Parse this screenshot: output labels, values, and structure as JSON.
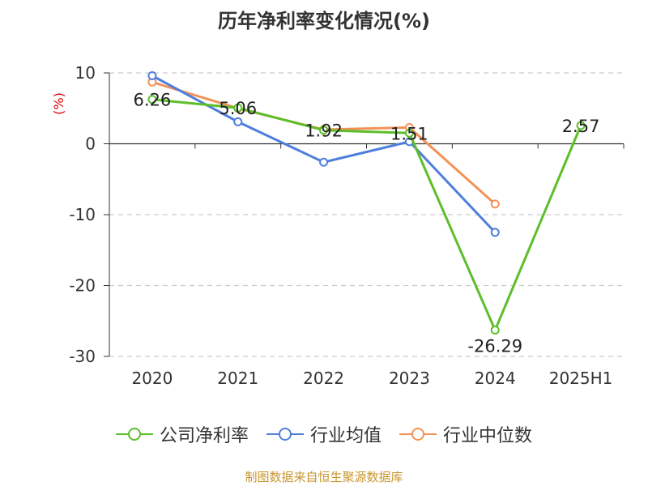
{
  "chart_data": {
    "type": "line",
    "title": "历年净利率变化情况(%)",
    "ylabel": "(%)",
    "categories": [
      "2020",
      "2021",
      "2022",
      "2023",
      "2024",
      "2025H1"
    ],
    "ylim": [
      -30,
      10
    ],
    "yticks": [
      10,
      0,
      -10,
      -20,
      -30
    ],
    "grid": true,
    "legend_position": "bottom",
    "series": [
      {
        "name": "公司净利率",
        "color": "#5cbf29",
        "values": [
          6.26,
          5.06,
          1.92,
          1.51,
          -26.29,
          2.57
        ],
        "labels": [
          "6.26",
          "5.06",
          "1.92",
          "1.51",
          "-26.29",
          "2.57"
        ]
      },
      {
        "name": "行业均值",
        "color": "#4f7fdc",
        "values": [
          9.6,
          3.1,
          -2.6,
          0.3,
          -12.5,
          null
        ]
      },
      {
        "name": "行业中位数",
        "color": "#f39257",
        "values": [
          8.7,
          5.0,
          2.0,
          2.3,
          -8.5,
          null
        ]
      }
    ]
  },
  "source": "制图数据来自恒生聚源数据库"
}
